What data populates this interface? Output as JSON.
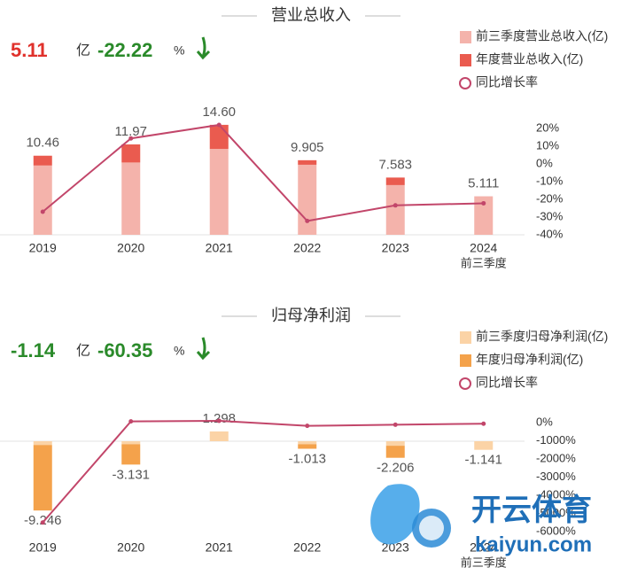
{
  "chart_data": [
    {
      "type": "bar",
      "title": "营业总收入",
      "headline": {
        "value": 5.11,
        "unit": "亿",
        "change": -22.22,
        "change_unit": "%"
      },
      "categories": [
        "2019",
        "2020",
        "2021",
        "2022",
        "2023",
        "2024"
      ],
      "category_note": "前三季度",
      "ylim": [
        0,
        16
      ],
      "series": [
        {
          "name": "前三季度营业总收入(亿)",
          "color": "#f4b3ab",
          "values": [
            9.2,
            9.6,
            11.4,
            9.3,
            6.6,
            5.111
          ]
        },
        {
          "name": "年度营业总收入(亿)",
          "color": "#ea5b4f",
          "values": [
            1.3,
            2.4,
            3.2,
            0.6,
            1.0,
            null
          ]
        },
        {
          "name": "同比增长率",
          "color": "#c2466a",
          "axis": "y2",
          "values": [
            -27,
            14.4,
            22.0,
            -32.2,
            -23.4,
            -22.22
          ]
        }
      ],
      "value_labels": [
        "10.46",
        "11.97",
        "14.60",
        "9.905",
        "7.583",
        "5.111"
      ],
      "y2lim": [
        -40,
        20
      ],
      "y2ticks": [
        {
          "value": 20,
          "label": "20%"
        },
        {
          "value": 10,
          "label": "10%"
        },
        {
          "value": 0,
          "label": "0%"
        },
        {
          "value": -10,
          "label": "-10%"
        },
        {
          "value": -20,
          "label": "-20%"
        },
        {
          "value": -30,
          "label": "-30%"
        },
        {
          "value": -40,
          "label": "-40%"
        }
      ]
    },
    {
      "type": "bar",
      "title": "归母净利润",
      "headline": {
        "value": -1.14,
        "unit": "亿",
        "change": -60.35,
        "change_unit": "%"
      },
      "categories": [
        "2019",
        "2020",
        "2021",
        "2022",
        "2023",
        "2024"
      ],
      "category_note": "前三季度",
      "ylim": [
        -10,
        2
      ],
      "series": [
        {
          "name": "前三季度归母净利润(亿)",
          "color": "#fbd3a6",
          "values": [
            -0.5,
            -0.4,
            1.298,
            -0.4,
            -0.6,
            -1.141
          ]
        },
        {
          "name": "年度归母净利润(亿)",
          "color": "#f4a24b",
          "values": [
            -8.7,
            -2.7,
            null,
            -0.6,
            -1.6,
            null
          ]
        },
        {
          "name": "同比增长率",
          "color": "#c2466a",
          "axis": "y2",
          "values": [
            -5500,
            66,
            100,
            -178,
            -118,
            -60.35
          ]
        }
      ],
      "value_labels": [
        "-9.246",
        "-3.131",
        "1.298",
        "-1.013",
        "-2.206",
        "-1.141"
      ],
      "y2lim": [
        -6000,
        0
      ],
      "y2ticks": [
        {
          "value": 0,
          "label": "0%"
        },
        {
          "value": -1000,
          "label": "-1000%"
        },
        {
          "value": -2000,
          "label": "-2000%"
        },
        {
          "value": -3000,
          "label": "-3000%"
        },
        {
          "value": -4000,
          "label": "-4000%"
        },
        {
          "value": -5000,
          "label": "-5000%"
        },
        {
          "value": -6000,
          "label": "-6000%"
        }
      ]
    }
  ],
  "watermark": {
    "brand": "开云体育",
    "site": "kaiyun.com"
  }
}
